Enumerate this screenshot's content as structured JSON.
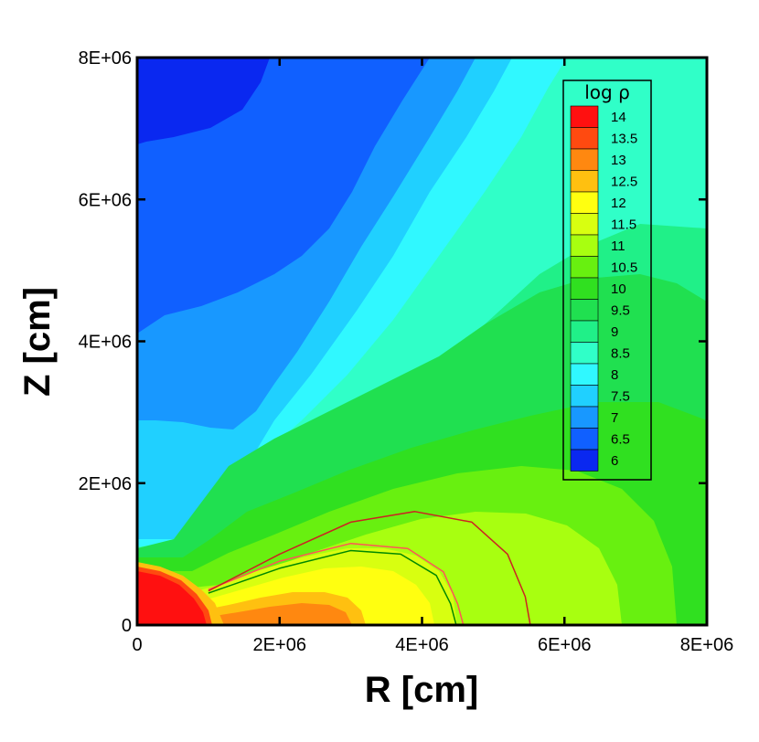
{
  "chart_data": {
    "type": "heatmap",
    "title": "",
    "xlabel": "R [cm]",
    "ylabel": "Z [cm]",
    "xlim": [
      0,
      8000000
    ],
    "ylim": [
      0,
      8000000
    ],
    "x_ticks": [
      0,
      2000000,
      4000000,
      6000000,
      8000000
    ],
    "x_tick_labels": [
      "0",
      "2E+06",
      "4E+06",
      "6E+06",
      "8E+06"
    ],
    "y_ticks": [
      0,
      2000000,
      4000000,
      6000000,
      8000000
    ],
    "y_tick_labels": [
      "0",
      "2E+06",
      "4E+06",
      "6E+06",
      "8E+06"
    ],
    "legend": {
      "title": "log ρ",
      "position": "top-right",
      "levels": [
        14,
        13.5,
        13,
        12.5,
        12,
        11.5,
        11,
        10.5,
        10,
        9.5,
        9,
        8.5,
        8,
        7.5,
        7,
        6.5,
        6
      ],
      "labels": [
        "14",
        "13.5",
        "13",
        "12.5",
        "12",
        "11.5",
        "11",
        "10.5",
        "10",
        "9.5",
        "9",
        "8.5",
        "8",
        "7.5",
        "7",
        "6.5",
        "6"
      ],
      "colors": [
        "#ff1010",
        "#ff4a10",
        "#ff8810",
        "#ffc010",
        "#ffff10",
        "#d8ff10",
        "#a8ff10",
        "#68f010",
        "#30e020",
        "#20e050",
        "#20f088",
        "#30ffc8",
        "#30f8ff",
        "#20d0ff",
        "#1898ff",
        "#1060ff",
        "#0a28f0"
      ]
    },
    "contour_lines": [
      {
        "color": "#008800",
        "points": [
          [
            1000000,
            450000
          ],
          [
            2000000,
            800000
          ],
          [
            3000000,
            1050000
          ],
          [
            3700000,
            1000000
          ],
          [
            4200000,
            700000
          ],
          [
            4400000,
            300000
          ],
          [
            4480000,
            0
          ]
        ]
      },
      {
        "color": "#ff5555",
        "points": [
          [
            1000000,
            500000
          ],
          [
            2000000,
            900000
          ],
          [
            3000000,
            1150000
          ],
          [
            3800000,
            1080000
          ],
          [
            4300000,
            750000
          ],
          [
            4500000,
            300000
          ],
          [
            4580000,
            0
          ]
        ]
      },
      {
        "color": "#cc2222",
        "points": [
          [
            1000000,
            480000
          ],
          [
            2000000,
            1000000
          ],
          [
            3000000,
            1450000
          ],
          [
            3900000,
            1600000
          ],
          [
            4700000,
            1450000
          ],
          [
            5200000,
            1000000
          ],
          [
            5450000,
            400000
          ],
          [
            5520000,
            0
          ]
        ]
      }
    ],
    "grid": false
  }
}
